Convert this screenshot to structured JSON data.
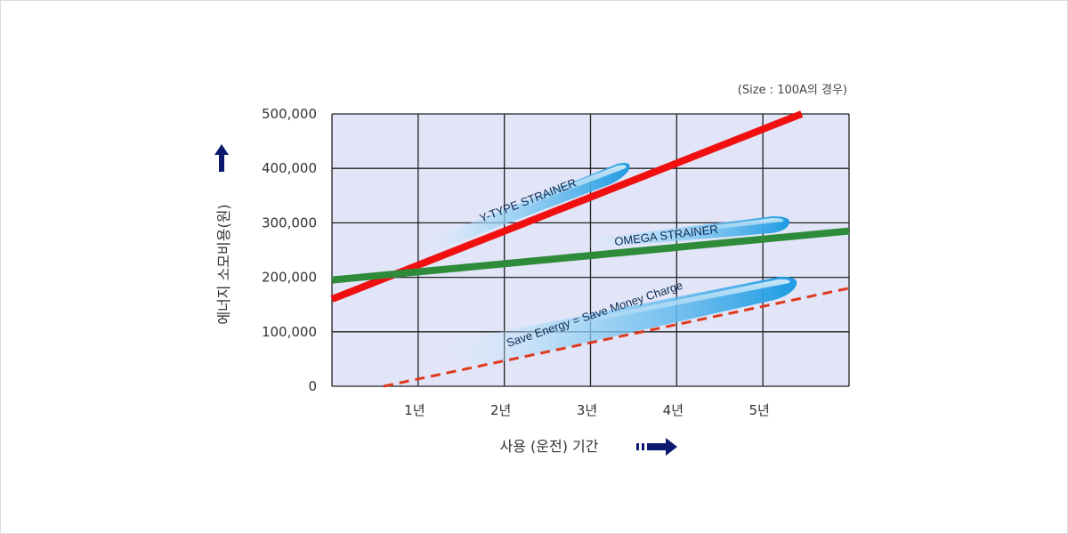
{
  "chart_data": {
    "type": "line",
    "note": "(Size : 100A의 경우)",
    "ylabel": "에너지 소모비용(원)",
    "xlabel": "사용 (운전) 기간",
    "y_ticks": [
      "0",
      "100,000",
      "200,000",
      "300,000",
      "400,000",
      "500,000"
    ],
    "x_ticks": [
      "1년",
      "2년",
      "3년",
      "4년",
      "5년"
    ],
    "xlim": [
      0,
      6
    ],
    "ylim": [
      0,
      500000
    ],
    "grid": true,
    "series": [
      {
        "name": "Y-TYPE STRAINER",
        "color": "#f01010",
        "style": "solid",
        "x": [
          0,
          5.45
        ],
        "y": [
          160000,
          500000
        ]
      },
      {
        "name": "OMEGA STRAINER",
        "color": "#2e8b3a",
        "style": "solid",
        "x": [
          0,
          6
        ],
        "y": [
          195000,
          285000
        ]
      },
      {
        "name": "Save Energy = Save Money Charge",
        "color": "#e03a1e",
        "style": "dashed",
        "x": [
          0.6,
          6
        ],
        "y": [
          0,
          180000
        ]
      }
    ],
    "annotations": [
      "Y-TYPE STRAINER",
      "OMEGA STRAINER",
      "Save Energy = Save Money Charge"
    ]
  },
  "colors": {
    "plot_background": "#e1e5f7",
    "grid": "#222222",
    "arrow": "#0b1a6e",
    "bubble": "#1e9be3"
  },
  "icons": {
    "y_arrow": "up-arrow-icon",
    "x_arrow": "right-arrow-icon"
  }
}
